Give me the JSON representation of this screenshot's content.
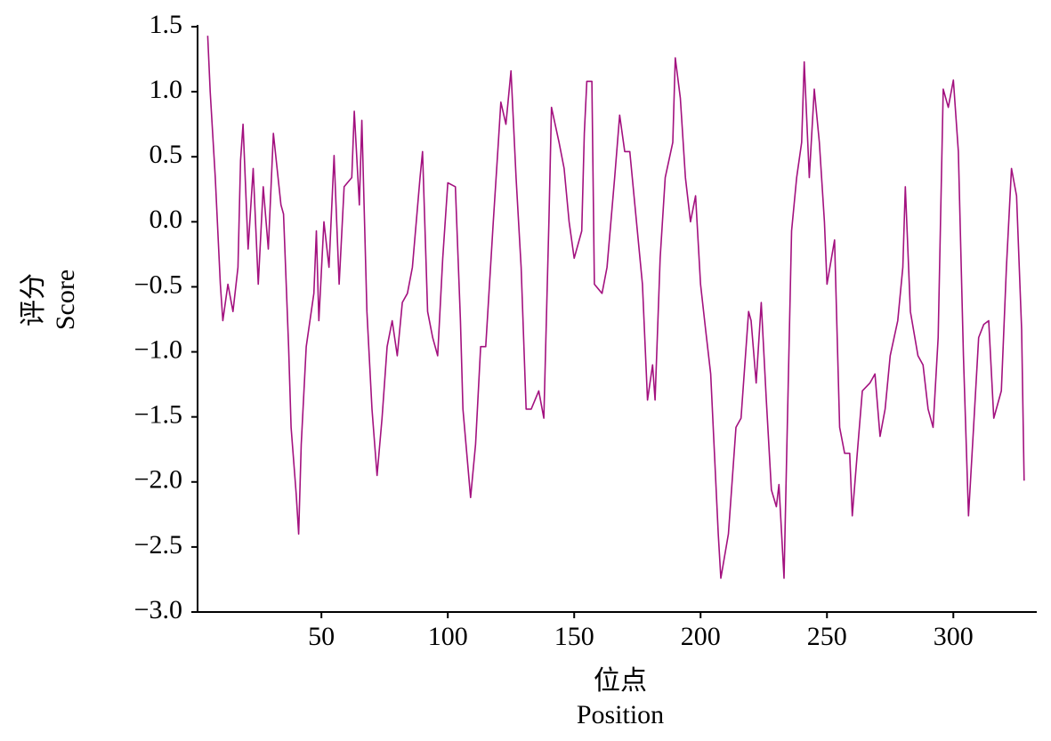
{
  "chart_data": {
    "type": "line",
    "x_label": [
      "位点",
      "Position"
    ],
    "y_label": [
      "评分",
      "Score"
    ],
    "xlim": [
      1,
      333
    ],
    "ylim": [
      -3.0,
      1.5
    ],
    "xticks": [
      50,
      100,
      150,
      200,
      250,
      300
    ],
    "yticks": [
      {
        "value": -3.0,
        "label": "−3.0"
      },
      {
        "value": -2.5,
        "label": "−2.5"
      },
      {
        "value": -2.0,
        "label": "−2.0"
      },
      {
        "value": -1.5,
        "label": "−1.5"
      },
      {
        "value": -1.0,
        "label": "−1.0"
      },
      {
        "value": -0.5,
        "label": "−0.5"
      },
      {
        "value": 0.0,
        "label": "0.0"
      },
      0.5,
      {
        "value": 1.0,
        "label": "1.0"
      },
      1.5
    ],
    "series": [
      {
        "color": "#a3117f",
        "x": [
          5,
          6,
          8,
          10,
          11,
          13,
          15,
          17,
          18,
          19,
          21,
          23,
          25,
          27,
          29,
          31,
          34,
          35,
          37,
          38,
          40,
          41,
          42,
          44,
          47,
          48,
          49,
          51,
          53,
          55,
          57,
          59,
          62,
          63,
          65,
          66,
          68,
          70,
          72,
          74,
          76,
          78,
          80,
          82,
          84,
          86,
          89,
          90,
          92,
          94,
          96,
          98,
          100,
          103,
          105,
          106,
          109,
          111,
          113,
          115,
          118,
          120,
          121,
          123,
          125,
          127,
          129,
          131,
          133,
          136,
          138,
          140,
          141,
          144,
          146,
          148,
          150,
          153,
          154,
          155,
          157,
          158,
          161,
          163,
          166,
          168,
          170,
          172,
          174,
          177,
          179,
          181,
          182,
          184,
          186,
          189,
          190,
          192,
          194,
          196,
          198,
          200,
          202,
          204,
          207,
          208,
          211,
          214,
          216,
          219,
          220,
          222,
          224,
          226,
          228,
          230,
          231,
          233,
          234,
          236,
          238,
          240,
          241,
          243,
          245,
          247,
          249,
          250,
          253,
          255,
          257,
          259,
          260,
          262,
          264,
          267,
          269,
          271,
          273,
          275,
          278,
          280,
          281,
          283,
          286,
          288,
          290,
          292,
          294,
          296,
          298,
          300,
          302,
          304,
          306,
          308,
          310,
          312,
          314,
          316,
          319,
          321,
          323,
          325,
          327,
          328
        ],
        "values": [
          1.43,
          1.0,
          0.34,
          -0.48,
          -0.76,
          -0.48,
          -0.69,
          -0.35,
          0.47,
          0.75,
          -0.21,
          0.41,
          -0.48,
          0.27,
          -0.21,
          0.68,
          0.13,
          0.06,
          -0.96,
          -1.58,
          -2.09,
          -2.4,
          -1.71,
          -0.96,
          -0.55,
          -0.07,
          -0.76,
          0.0,
          -0.35,
          0.51,
          -0.48,
          0.27,
          0.34,
          0.85,
          0.13,
          0.78,
          -0.69,
          -1.44,
          -1.95,
          -1.51,
          -0.96,
          -0.76,
          -1.03,
          -0.62,
          -0.55,
          -0.35,
          0.34,
          0.54,
          -0.69,
          -0.89,
          -1.03,
          -0.28,
          0.3,
          0.27,
          -0.76,
          -1.44,
          -2.12,
          -1.71,
          -0.96,
          -0.96,
          0.0,
          0.61,
          0.92,
          0.75,
          1.16,
          0.34,
          -0.35,
          -1.44,
          -1.44,
          -1.3,
          -1.51,
          0.0,
          0.88,
          0.61,
          0.41,
          0.0,
          -0.28,
          -0.07,
          0.68,
          1.08,
          1.08,
          -0.48,
          -0.55,
          -0.35,
          0.34,
          0.82,
          0.54,
          0.54,
          0.13,
          -0.48,
          -1.37,
          -1.1,
          -1.37,
          -0.28,
          0.34,
          0.61,
          1.26,
          0.95,
          0.34,
          0.0,
          0.2,
          -0.48,
          -0.83,
          -1.17,
          -2.4,
          -2.74,
          -2.4,
          -1.58,
          -1.51,
          -0.69,
          -0.76,
          -1.24,
          -0.62,
          -1.37,
          -2.06,
          -2.19,
          -2.02,
          -2.74,
          -1.85,
          -0.07,
          0.34,
          0.61,
          1.23,
          0.34,
          1.02,
          0.61,
          0.0,
          -0.48,
          -0.14,
          -1.58,
          -1.78,
          -1.78,
          -2.26,
          -1.78,
          -1.3,
          -1.24,
          -1.17,
          -1.65,
          -1.44,
          -1.03,
          -0.76,
          -0.35,
          0.27,
          -0.69,
          -1.03,
          -1.1,
          -1.44,
          -1.58,
          -0.89,
          1.02,
          0.88,
          1.09,
          0.54,
          -1.03,
          -2.26,
          -1.58,
          -0.89,
          -0.79,
          -0.76,
          -1.51,
          -1.3,
          -0.35,
          0.41,
          0.2,
          -0.83,
          -1.99
        ]
      }
    ]
  }
}
